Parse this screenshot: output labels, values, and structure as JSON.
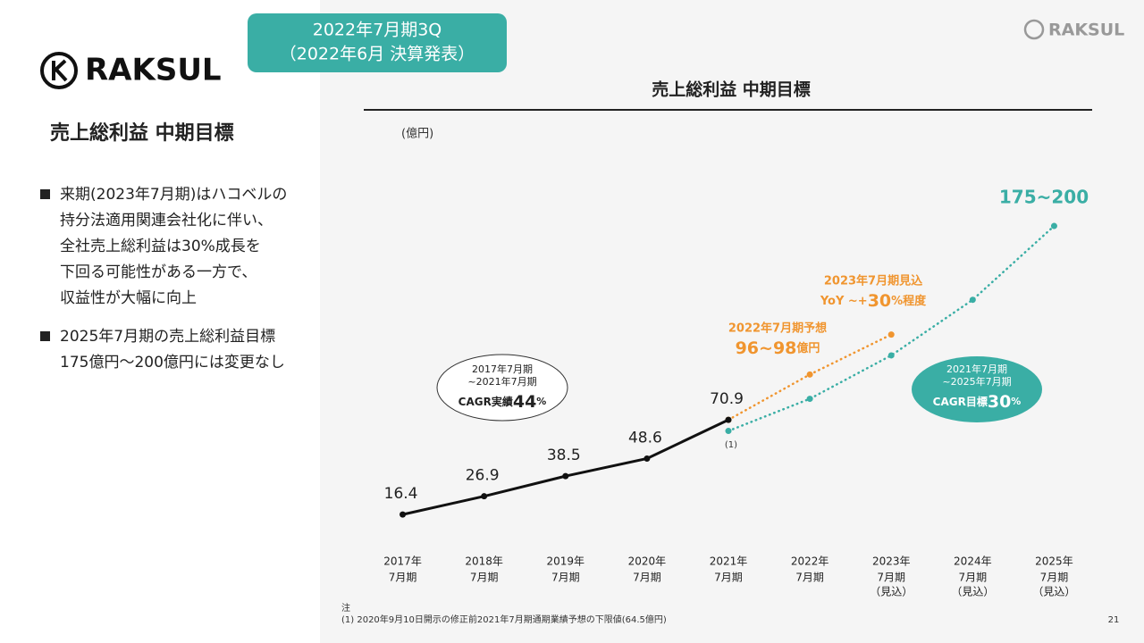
{
  "brand": "RAKSUL",
  "badge": [
    "2022年7月期3Q",
    "（2022年6月 決算発表）"
  ],
  "page_title": "売上総利益 中期目標",
  "bullets": [
    [
      "来期(2023年7月期)はハコベルの",
      "持分法適用関連会社化に伴い、",
      "全社売上総利益は30%成長を",
      "下回る可能性がある一方で、",
      "収益性が大幅に向上"
    ],
    [
      "2025年7月期の売上総利益目標",
      "175億円～200億円には変更なし"
    ]
  ],
  "notes": [
    "注",
    "(1) 2020年9月10日開示の修正前2021年7月期通期業績予想の下限値(64.5億円)"
  ],
  "page_number": "21",
  "chart_data": {
    "type": "line",
    "title": "売上総利益 中期目標",
    "unit_label": "(億円)",
    "categories": [
      [
        "2017年",
        "7月期"
      ],
      [
        "2018年",
        "7月期"
      ],
      [
        "2019年",
        "7月期"
      ],
      [
        "2020年",
        "7月期"
      ],
      [
        "2021年",
        "7月期"
      ],
      [
        "2022年",
        "7月期"
      ],
      [
        "2023年",
        "7月期",
        "（見込）"
      ],
      [
        "2024年",
        "7月期",
        "（見込）"
      ],
      [
        "2025年",
        "7月期",
        "（見込）"
      ]
    ],
    "series": [
      {
        "color": "#111111",
        "style": "solid",
        "values": [
          16.4,
          26.9,
          38.5,
          48.6,
          70.9,
          null,
          null,
          null,
          null
        ],
        "labels": true
      },
      {
        "color": "#f0952f",
        "style": "dotted",
        "values": [
          null,
          null,
          null,
          null,
          70.9,
          97,
          120,
          null,
          null
        ]
      },
      {
        "color": "#3aaea5",
        "style": "dotted",
        "values": [
          null,
          null,
          null,
          null,
          64.5,
          83,
          108,
          140,
          182.5
        ]
      }
    ],
    "ylim": [
      0,
      200
    ],
    "annotations": {
      "target": "175~200",
      "forecast_2022": [
        "2022年7月期予想",
        "96~98",
        "億円"
      ],
      "outlook_2023": [
        "2023年7月期見込",
        "YoY ~+",
        "30",
        "%程度"
      ],
      "cagr_actual": [
        "2017年7月期",
        "~2021年7月期",
        "CAGR実績",
        "44",
        "%"
      ],
      "cagr_target": [
        "2021年7月期",
        "~2025年7月期",
        "CAGR目標",
        "30",
        "%"
      ],
      "footnote_mark": "(1)"
    }
  }
}
